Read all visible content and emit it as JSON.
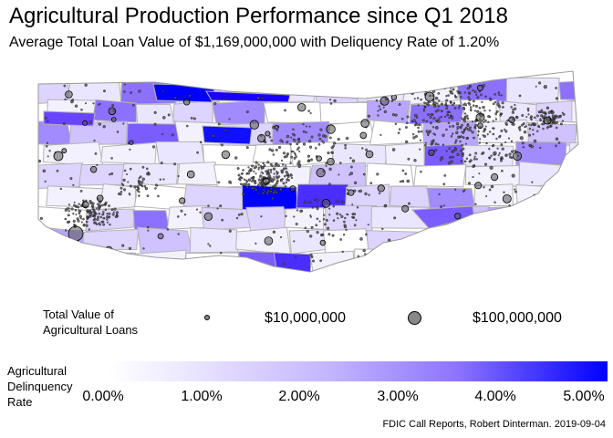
{
  "title": "Agricultural Production Performance since Q1 2018",
  "subtitle": "Average Total Loan Value of $1,169,000,000 with Deliquency Rate of 1.20%",
  "size_legend": {
    "title_line1": "Total Value of",
    "title_line2": "Agricultural Loans",
    "items": [
      {
        "label": "$10,000,000",
        "value": 10000000
      },
      {
        "label": "$100,000,000",
        "value": 100000000
      }
    ]
  },
  "color_legend": {
    "title_line1": "Agricultural",
    "title_line2": "Delinquency",
    "title_line3": "Rate",
    "ticks": [
      "0.00%",
      "1.00%",
      "2.00%",
      "3.00%",
      "4.00%",
      "5.00%"
    ],
    "range": [
      0,
      5
    ],
    "low_color": "#ffffff",
    "high_color": "#0000ff"
  },
  "caption": "FDIC Call Reports, Robert Dinterman. 2019-09-04",
  "colors": {
    "county_border": "#b3b3b3",
    "point_fill": "#555555"
  }
}
